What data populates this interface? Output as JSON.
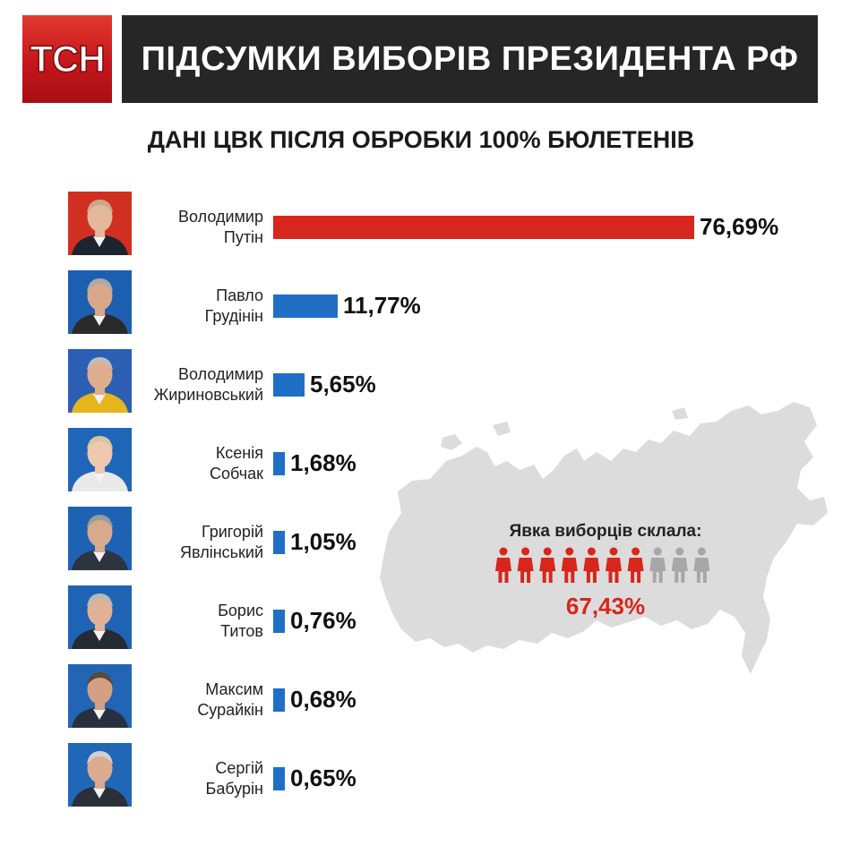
{
  "header": {
    "logo": "ТСН",
    "title": "ПІДСУМКИ ВИБОРІВ ПРЕЗИДЕНТА РФ",
    "subtitle": "ДАНІ ЦВК ПІСЛЯ ОБРОБКИ 100% БЮЛЕТЕНІВ"
  },
  "colors": {
    "winner_bar": "#d7261b",
    "other_bar": "#1f6fc5",
    "header_bg": "#262626",
    "logo_bg": "#c4161c",
    "map": "#dcdcdc",
    "person_active": "#d7261b",
    "person_inactive": "#a7a7a7"
  },
  "chart_data": {
    "type": "bar",
    "orientation": "horizontal",
    "title": "ДАНІ ЦВК ПІСЛЯ ОБРОБКИ 100% БЮЛЕТЕНІВ",
    "categories": [
      "Володимир Путін",
      "Павло Грудінін",
      "Володимир Жириновський",
      "Ксенія Собчак",
      "Григорій Явлінський",
      "Борис Титов",
      "Максим Сурайкін",
      "Сергій Бабурін"
    ],
    "values": [
      76.69,
      11.77,
      5.65,
      1.68,
      1.05,
      0.76,
      0.68,
      0.65
    ],
    "value_labels": [
      "76,69%",
      "11,77%",
      "5,65%",
      "1,68%",
      "1,05%",
      "0,76%",
      "0,68%",
      "0,65%"
    ],
    "unit": "%",
    "highlight_index": 0,
    "xlim": [
      0,
      76.69
    ],
    "grid": false,
    "legend": "none"
  },
  "candidates": [
    {
      "first": "Володимир",
      "last": "Путін",
      "pct": "76,69%",
      "photo_bg": "#d12f22",
      "suit": "#1c2430",
      "skin": "#e2b79c",
      "hair": "#c9a988"
    },
    {
      "first": "Павло",
      "last": "Грудінін",
      "pct": "11,77%",
      "photo_bg": "#1c5fb0",
      "suit": "#2a2a2a",
      "skin": "#d9a88a",
      "hair": "#aaaaaa"
    },
    {
      "first": "Володимир",
      "last": "Жириновський",
      "pct": "5,65%",
      "photo_bg": "#2b5fb3",
      "suit": "#e4b51c",
      "skin": "#e0ad8f",
      "hair": "#bdbdbd"
    },
    {
      "first": "Ксенія",
      "last": "Собчак",
      "pct": "1,68%",
      "photo_bg": "#2066b8",
      "suit": "#e9e9e9",
      "skin": "#efc8b0",
      "hair": "#d8c3a0"
    },
    {
      "first": "Григорій",
      "last": "Явлінський",
      "pct": "1,05%",
      "photo_bg": "#1d62b3",
      "suit": "#2d3440",
      "skin": "#d7a98d",
      "hair": "#9a9a9a"
    },
    {
      "first": "Борис",
      "last": "Титов",
      "pct": "0,76%",
      "photo_bg": "#1f63b4",
      "suit": "#252a33",
      "skin": "#e0b196",
      "hair": "#b8b8b8"
    },
    {
      "first": "Максим",
      "last": "Сурайкін",
      "pct": "0,68%",
      "photo_bg": "#2265b5",
      "suit": "#283040",
      "skin": "#d4a084",
      "hair": "#5a4a3a"
    },
    {
      "first": "Сергій",
      "last": "Бабурін",
      "pct": "0,65%",
      "photo_bg": "#2167b7",
      "suit": "#2a2f38",
      "skin": "#dcaa8e",
      "hair": "#d0d0d0"
    }
  ],
  "turnout": {
    "label": "Явка виборців склала:",
    "value": "67,43%",
    "value_number": 67.43,
    "people_total": 10,
    "people_filled": 7
  }
}
